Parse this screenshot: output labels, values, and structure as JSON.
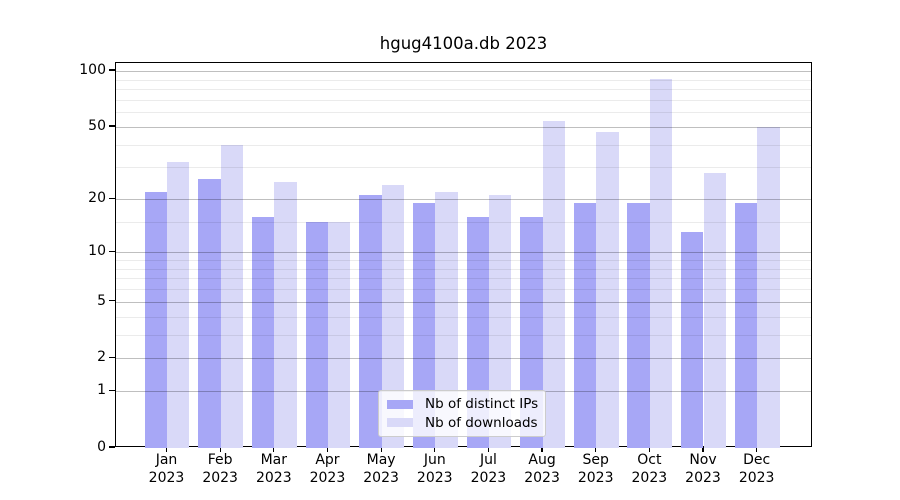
{
  "title": "hgug4100a.db 2023",
  "chart_data": {
    "type": "bar",
    "title": "hgug4100a.db 2023",
    "categories": [
      "Jan",
      "Feb",
      "Mar",
      "Apr",
      "May",
      "Jun",
      "Jul",
      "Aug",
      "Sep",
      "Oct",
      "Nov",
      "Dec"
    ],
    "category_year": "2023",
    "series": [
      {
        "name": "Nb of distinct IPs",
        "color": "#a7a7f6",
        "values": [
          22,
          26,
          16,
          15,
          21,
          19,
          16,
          16,
          19,
          19,
          13,
          19
        ]
      },
      {
        "name": "Nb of downloads",
        "color": "#d9d9f8",
        "values": [
          32,
          40,
          25,
          15,
          24,
          22,
          21,
          54,
          47,
          91,
          28,
          50
        ]
      }
    ],
    "y_scale": "log10(1+x)",
    "y_tick_values": [
      0,
      1,
      2,
      5,
      10,
      20,
      50,
      100
    ],
    "y_minor_grid_values": [
      3,
      4,
      6,
      7,
      8,
      9,
      15,
      30,
      40,
      60,
      70,
      80,
      90
    ],
    "ylim": [
      0,
      110
    ],
    "xlabel": "",
    "ylabel": "",
    "grid": "horizontal",
    "legend_position": "bottom-center"
  },
  "legend": {
    "items": [
      {
        "label": "Nb of distinct IPs",
        "color": "#a7a7f6"
      },
      {
        "label": "Nb of downloads",
        "color": "#d9d9f8"
      }
    ]
  },
  "colors": {
    "distinct_ips_bar": "#a7a7f6",
    "downloads_bar": "#d9d9f8",
    "spine": "#000000",
    "background": "#ffffff"
  }
}
